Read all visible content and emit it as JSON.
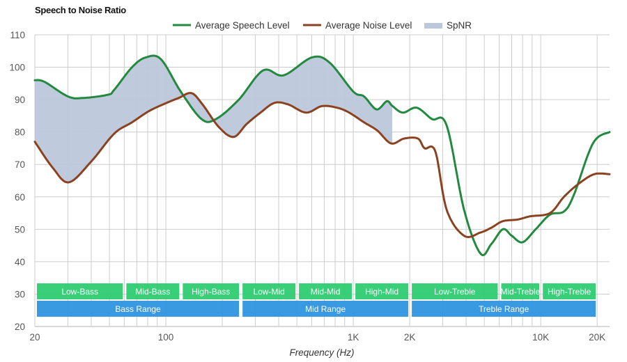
{
  "chart_data": {
    "type": "line",
    "title": "Speech to Noise Ratio",
    "xlabel": "Frequency (Hz)",
    "ylabel": "",
    "xscale": "log",
    "xlim": [
      20,
      23300
    ],
    "ylim": [
      20,
      110
    ],
    "grid": true,
    "legend_position": "top-center",
    "y_ticks": [
      "20",
      "30",
      "40",
      "50",
      "60",
      "70",
      "80",
      "90",
      "100",
      "110"
    ],
    "y_tick_values": [
      20,
      30,
      40,
      50,
      60,
      70,
      80,
      90,
      100,
      110
    ],
    "x_ticks": [
      {
        "label": "20",
        "value": 20
      },
      {
        "label": "100",
        "value": 100
      },
      {
        "label": "1K",
        "value": 1000
      },
      {
        "label": "2K",
        "value": 2000
      },
      {
        "label": "10K",
        "value": 10000
      },
      {
        "label": "20K",
        "value": 20000
      }
    ],
    "x_minor_grid": [
      30,
      40,
      50,
      60,
      70,
      80,
      90,
      200,
      300,
      400,
      500,
      600,
      700,
      800,
      900,
      3000,
      4000,
      5000,
      6000,
      7000,
      8000,
      9000
    ],
    "legend": [
      {
        "label": "Average Speech Level",
        "color": "#23893f",
        "kind": "line"
      },
      {
        "label": "Average Noise Level",
        "color": "#8b4220",
        "kind": "line"
      },
      {
        "label": "SpNR",
        "color": "#bcc7db",
        "kind": "area"
      }
    ],
    "series": [
      {
        "name": "Average Speech Level",
        "color": "#23893f",
        "x": [
          20,
          22.5,
          30,
          36,
          49,
          53,
          66,
          78,
          94,
          120,
          155,
          185,
          245,
          330,
          425,
          600,
          745,
          1000,
          1140,
          1330,
          1510,
          1620,
          1840,
          2180,
          2630,
          3150,
          3900,
          4770,
          5460,
          6280,
          7000,
          8000,
          9400,
          11200,
          13300,
          15000,
          19000,
          23300
        ],
        "y": [
          96,
          95.5,
          91,
          90.5,
          91.5,
          93,
          100,
          103,
          102.5,
          92.5,
          84,
          84,
          90,
          99,
          97.5,
          103,
          101.5,
          92.5,
          91,
          87,
          89.5,
          88,
          86,
          87.5,
          84,
          82,
          56,
          42.5,
          45.5,
          50,
          48,
          46,
          50,
          54.5,
          55.5,
          60.5,
          76.5,
          80
        ]
      },
      {
        "name": "Average Noise Level",
        "color": "#8b4220",
        "x": [
          20,
          24.9,
          30.4,
          40.1,
          53,
          66,
          81.5,
          101,
          117,
          137,
          157,
          192,
          230,
          270,
          320,
          380,
          450,
          560,
          680,
          820,
          950,
          1140,
          1340,
          1590,
          1870,
          2210,
          2400,
          2740,
          3150,
          3900,
          4770,
          5460,
          6280,
          7520,
          8790,
          11200,
          13300,
          15900,
          19300,
          23300
        ],
        "y": [
          77,
          69,
          64.5,
          71,
          79.5,
          83,
          86.5,
          89,
          90.5,
          92,
          88.5,
          81.5,
          78.5,
          82.5,
          86,
          89,
          88.5,
          86,
          88,
          87.5,
          86,
          83,
          80.5,
          76.5,
          78,
          78,
          75,
          74,
          56,
          48,
          49,
          50.5,
          52.5,
          53,
          54,
          55,
          60,
          64,
          67,
          67
        ]
      }
    ],
    "fill_between": {
      "name": "SpNR",
      "color": "#bcc7db",
      "x_start": 20,
      "x_end": 1620
    },
    "bands": {
      "ranges": [
        {
          "label": "Low-Bass",
          "from": 20,
          "to": 60
        },
        {
          "label": "Mid-Bass",
          "from": 60,
          "to": 120
        },
        {
          "label": "High-Bass",
          "from": 120,
          "to": 250
        },
        {
          "label": "Low-Mid",
          "from": 250,
          "to": 500
        },
        {
          "label": "Mid-Mid",
          "from": 500,
          "to": 1000
        },
        {
          "label": "High-Mid",
          "from": 1000,
          "to": 2000
        },
        {
          "label": "Low-Treble",
          "from": 2000,
          "to": 6000
        },
        {
          "label": "Mid-Treble",
          "from": 6000,
          "to": 10000
        },
        {
          "label": "High-Treble",
          "from": 10000,
          "to": 20000
        }
      ],
      "groups": [
        {
          "label": "Bass Range",
          "from": 20,
          "to": 250
        },
        {
          "label": "Mid Range",
          "from": 250,
          "to": 2000
        },
        {
          "label": "Treble Range",
          "from": 2000,
          "to": 20000
        }
      ],
      "range_color": "#2ecc71",
      "group_color": "#2e95e0"
    }
  }
}
